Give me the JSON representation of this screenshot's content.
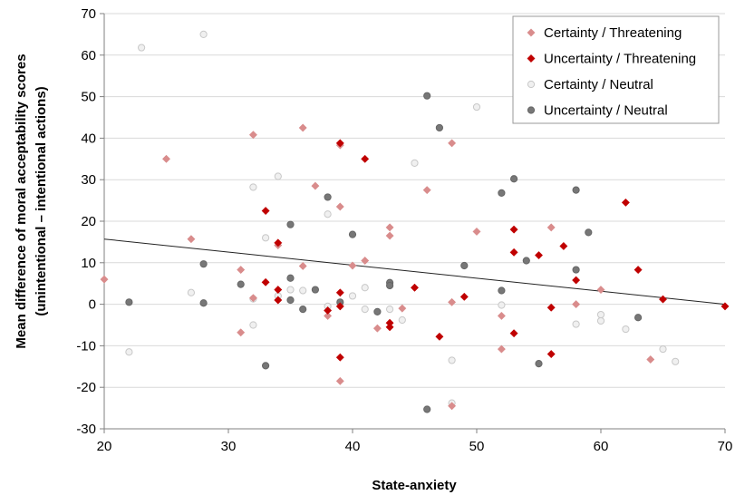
{
  "chart_data": {
    "type": "scatter",
    "title": "",
    "xlabel": "State-anxiety",
    "ylabel_line1": "Mean difference of moral acceptability scores",
    "ylabel_line2": "(unintentional – intentional actions)",
    "xlim": [
      20,
      70
    ],
    "ylim": [
      -30,
      70
    ],
    "xticks": [
      20,
      30,
      40,
      50,
      60,
      70
    ],
    "yticks": [
      -30,
      -20,
      -10,
      0,
      10,
      20,
      30,
      40,
      50,
      60,
      70
    ],
    "grid": true,
    "legend_position": "top-right",
    "trendline": {
      "x": [
        20,
        70
      ],
      "y": [
        15.7,
        0
      ]
    },
    "series": [
      {
        "name": "Certainty / Threatening",
        "marker": "diamond",
        "color": "#d98c8c",
        "stroke": "#d98c8c",
        "points": [
          [
            20,
            6
          ],
          [
            25,
            35
          ],
          [
            27,
            15.7
          ],
          [
            31,
            8.3
          ],
          [
            31,
            -6.8
          ],
          [
            32,
            40.8
          ],
          [
            32,
            1.5
          ],
          [
            34,
            14.2
          ],
          [
            36,
            42.5
          ],
          [
            36,
            9.2
          ],
          [
            37,
            28.5
          ],
          [
            38,
            -2.8
          ],
          [
            39,
            38.3
          ],
          [
            39,
            23.5
          ],
          [
            39,
            -18.5
          ],
          [
            40,
            9.3
          ],
          [
            41,
            10.5
          ],
          [
            42,
            -5.8
          ],
          [
            43,
            18.5
          ],
          [
            43,
            16.5
          ],
          [
            44,
            -1
          ],
          [
            46,
            27.5
          ],
          [
            48,
            38.8
          ],
          [
            48,
            0.5
          ],
          [
            48,
            -24.5
          ],
          [
            50,
            17.5
          ],
          [
            52,
            -2.8
          ],
          [
            52,
            -10.8
          ],
          [
            56,
            18.5
          ],
          [
            58,
            0
          ],
          [
            60,
            3.5
          ],
          [
            64,
            -13.3
          ]
        ]
      },
      {
        "name": "Uncertainty / Threatening",
        "marker": "diamond",
        "color": "#c00000",
        "stroke": "#c00000",
        "points": [
          [
            33,
            22.5
          ],
          [
            33,
            5.3
          ],
          [
            34,
            14.8
          ],
          [
            34,
            3.5
          ],
          [
            34,
            1
          ],
          [
            38,
            -1.5
          ],
          [
            39,
            38.8
          ],
          [
            39,
            2.8
          ],
          [
            39,
            -0.5
          ],
          [
            39,
            -12.8
          ],
          [
            41,
            35
          ],
          [
            43,
            -4.5
          ],
          [
            43,
            -5.5
          ],
          [
            45,
            4
          ],
          [
            47,
            -7.8
          ],
          [
            49,
            1.8
          ],
          [
            53,
            18
          ],
          [
            53,
            12.5
          ],
          [
            53,
            -7
          ],
          [
            55,
            11.8
          ],
          [
            56,
            -0.8
          ],
          [
            56,
            -12
          ],
          [
            57,
            14
          ],
          [
            58,
            5.8
          ],
          [
            62,
            24.5
          ],
          [
            63,
            8.3
          ],
          [
            65,
            1.2
          ],
          [
            70,
            -0.5
          ]
        ]
      },
      {
        "name": "Certainty / Neutral",
        "marker": "circle",
        "color": "#f0f0f0",
        "stroke": "#c8c8c8",
        "points": [
          [
            22,
            -11.5
          ],
          [
            23,
            61.8
          ],
          [
            27,
            2.8
          ],
          [
            28,
            65
          ],
          [
            32,
            28.2
          ],
          [
            32,
            1.3
          ],
          [
            32,
            -5
          ],
          [
            33,
            16
          ],
          [
            34,
            30.8
          ],
          [
            34,
            2
          ],
          [
            35,
            3.5
          ],
          [
            36,
            3.3
          ],
          [
            38,
            21.7
          ],
          [
            38,
            -0.5
          ],
          [
            40,
            2
          ],
          [
            41,
            4
          ],
          [
            41,
            -1.2
          ],
          [
            43,
            -1.2
          ],
          [
            44,
            -3.8
          ],
          [
            45,
            34
          ],
          [
            48,
            -13.5
          ],
          [
            48,
            -23.8
          ],
          [
            50,
            47.5
          ],
          [
            52,
            -0.2
          ],
          [
            58,
            -4.8
          ],
          [
            60,
            -2.5
          ],
          [
            60,
            -4
          ],
          [
            62,
            -6
          ],
          [
            65,
            -10.8
          ],
          [
            66,
            -13.8
          ]
        ]
      },
      {
        "name": "Uncertainty / Neutral",
        "marker": "circle",
        "color": "#777777",
        "stroke": "#666666",
        "points": [
          [
            22,
            0.5
          ],
          [
            28,
            9.7
          ],
          [
            28,
            0.3
          ],
          [
            31,
            4.8
          ],
          [
            33,
            -14.8
          ],
          [
            35,
            19.2
          ],
          [
            35,
            6.3
          ],
          [
            35,
            1
          ],
          [
            36,
            -1.2
          ],
          [
            37,
            3.5
          ],
          [
            38,
            25.8
          ],
          [
            39,
            0.5
          ],
          [
            40,
            16.8
          ],
          [
            42,
            -1.8
          ],
          [
            43,
            5.2
          ],
          [
            43,
            4.5
          ],
          [
            46,
            50.2
          ],
          [
            46,
            -25.3
          ],
          [
            47,
            42.5
          ],
          [
            49,
            9.3
          ],
          [
            52,
            26.8
          ],
          [
            52,
            3.3
          ],
          [
            53,
            30.2
          ],
          [
            54,
            10.5
          ],
          [
            55,
            -14.3
          ],
          [
            58,
            27.5
          ],
          [
            58,
            8.3
          ],
          [
            59,
            17.3
          ],
          [
            63,
            -3.2
          ]
        ]
      }
    ]
  }
}
